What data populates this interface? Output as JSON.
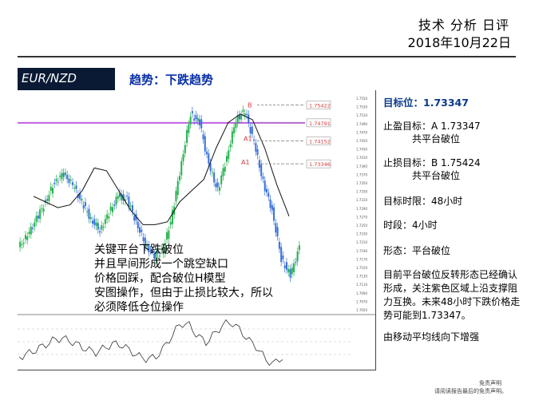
{
  "header": {
    "title": "技术 分析 日评",
    "date": "2018年10月22日"
  },
  "band": {
    "pair": "EUR/NZD",
    "trend": "趋势：下跌趋势"
  },
  "chart": {
    "price_labels": [
      "1.75422",
      "1.74791",
      "1.74152",
      "1.73346"
    ],
    "point_labels": [
      "B",
      "A1",
      "A1"
    ],
    "annotation": [
      "关键平台下跌破位",
      "并且早间形成一个跳空缺口",
      "价格回踩，配合破位H模型",
      "安图操作，但由于止损比较大，所以",
      "必须降低仓位操作"
    ]
  },
  "chart_data": {
    "type": "line",
    "series": [
      {
        "values": [
          1.704,
          1.708,
          1.714,
          1.72,
          1.727,
          1.73,
          1.726,
          1.72,
          1.714,
          1.71,
          1.716,
          1.722,
          1.721,
          1.713,
          1.705,
          1.701,
          1.703,
          1.716,
          1.734,
          1.751,
          1.748,
          1.733,
          1.724,
          1.736,
          1.749,
          1.752,
          1.741,
          1.727,
          1.717,
          1.7,
          1.694,
          1.704
        ]
      },
      {
        "values": [
          1.722,
          1.72,
          1.718,
          1.719,
          1.724,
          1.732,
          1.731,
          1.724,
          1.717,
          1.712,
          1.712,
          1.713,
          1.72,
          1.724,
          1.728,
          1.739,
          1.748,
          1.751,
          1.749,
          1.739,
          1.726,
          1.715
        ]
      }
    ],
    "ylim": [
      1.682,
      1.758
    ],
    "yticks": [
      "1.7550",
      "1.7530",
      "1.7510",
      "1.7490",
      "1.7470",
      "1.7450",
      "1.7430",
      "1.7410",
      "1.7390",
      "1.7370",
      "1.7350",
      "1.7330",
      "1.7310",
      "1.7290",
      "1.7270",
      "1.7250",
      "1.7230",
      "1.7210",
      "1.7190",
      "1.7170",
      "1.7150",
      "1.7130",
      "1.7110",
      "1.7090",
      "1.7070",
      "1.7050"
    ],
    "hlines": [
      {
        "value": 1.75422,
        "label": "1.75422"
      },
      {
        "value": 1.74791,
        "label": "1.74791"
      },
      {
        "value": 1.74152,
        "label": "1.74152"
      },
      {
        "value": 1.73346,
        "label": "1.73346"
      }
    ]
  },
  "side": {
    "target": "目标位：1.73347",
    "take_profit": "止盈目标：A 1.73347",
    "take_profit_sub": "共平台破位",
    "stop_loss": "止损目标：B 1.75424",
    "stop_loss_sub": "共平台破位",
    "time_limit": "目标时限：48小时",
    "timeframe": "时段：4小时",
    "pattern": "形态：平台破位",
    "analysis": "目前平台破位反转形态已经确认形成，关注紫色区域上沿支撑阻力互换。未来48小时下跌价格走势可能到1.73347。",
    "ma_note": "由移动平均线向下增强"
  },
  "disclaimer": {
    "line1": "免责声明",
    "line2": "请阅读报告最后的免责声明。"
  },
  "colors": {
    "band_dark": "#0a1a35",
    "trend_blue": "#0a2fa8",
    "bull": "#22b14c",
    "bear": "#3a6fd8",
    "support_zone": "#c060e0",
    "level_red": "#d43a3a"
  }
}
